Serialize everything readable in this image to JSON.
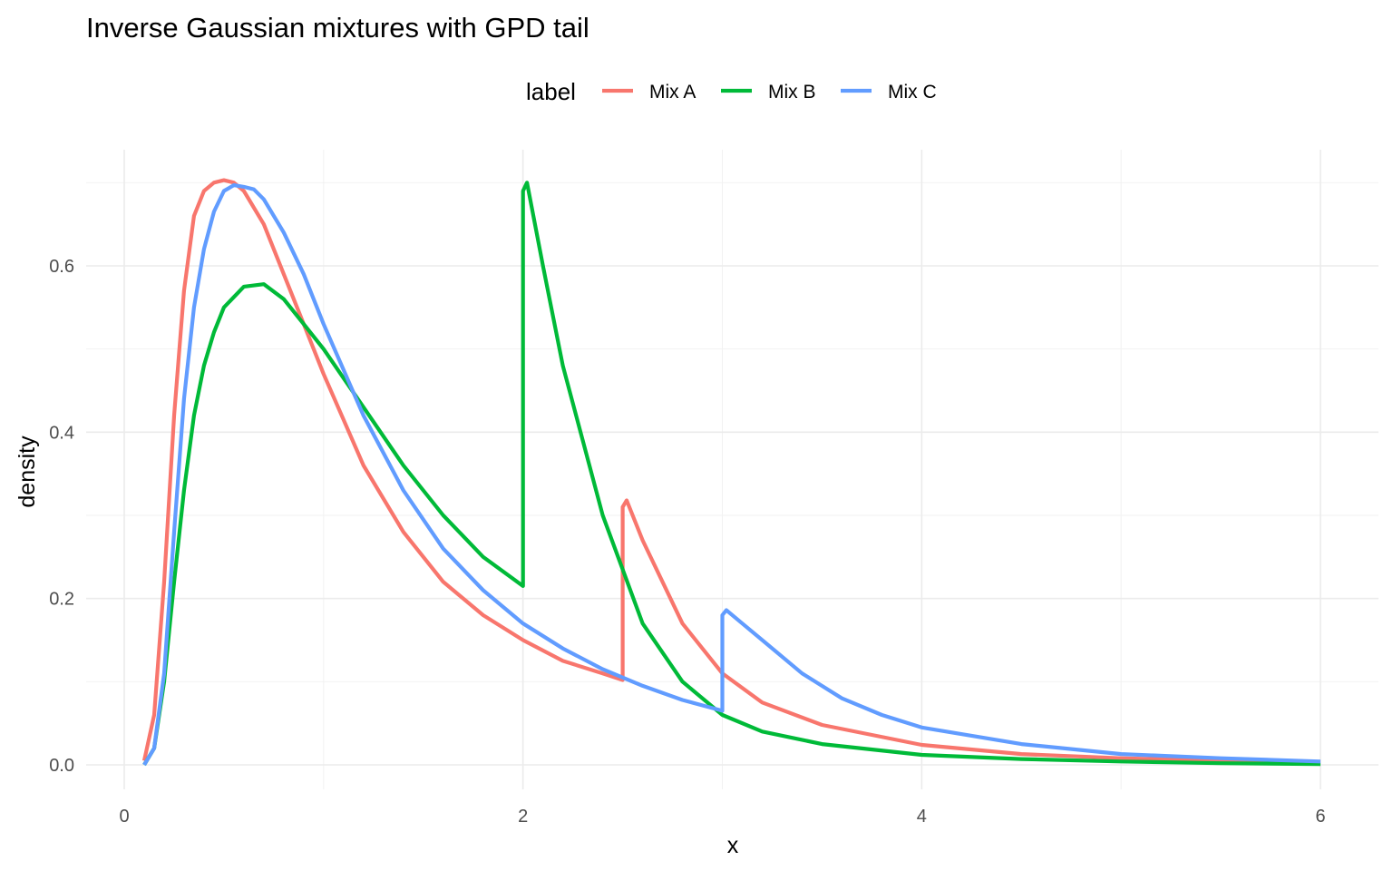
{
  "chart_data": {
    "type": "line",
    "title": "Inverse Gaussian mixtures with GPD tail",
    "xlabel": "x",
    "ylabel": "density",
    "xlim": [
      0,
      6.25
    ],
    "ylim": [
      -0.035,
      0.745
    ],
    "x_ticks": [
      0,
      2,
      4,
      6
    ],
    "x_tick_labels": [
      "0",
      "2",
      "4",
      "6"
    ],
    "y_ticks": [
      0.0,
      0.2,
      0.4,
      0.6
    ],
    "y_tick_labels": [
      "0.0",
      "0.2",
      "0.4",
      "0.6"
    ],
    "grid": true,
    "legend": {
      "title": "label",
      "position": "top"
    },
    "series": [
      {
        "name": "Mix A",
        "color": "#F8766D",
        "x": [
          0.1,
          0.15,
          0.2,
          0.25,
          0.3,
          0.35,
          0.4,
          0.45,
          0.5,
          0.55,
          0.6,
          0.7,
          0.8,
          0.9,
          1.0,
          1.2,
          1.4,
          1.6,
          1.8,
          2.0,
          2.2,
          2.4,
          2.5,
          2.5,
          2.52,
          2.6,
          2.8,
          3.0,
          3.2,
          3.5,
          4.0,
          4.5,
          5.0,
          5.5,
          6.0
        ],
        "y": [
          0.005,
          0.06,
          0.22,
          0.42,
          0.57,
          0.66,
          0.69,
          0.7,
          0.703,
          0.7,
          0.69,
          0.65,
          0.59,
          0.53,
          0.47,
          0.36,
          0.28,
          0.22,
          0.18,
          0.15,
          0.125,
          0.11,
          0.102,
          0.31,
          0.318,
          0.27,
          0.17,
          0.11,
          0.075,
          0.048,
          0.024,
          0.013,
          0.008,
          0.005,
          0.003
        ]
      },
      {
        "name": "Mix B",
        "color": "#00BA38",
        "x": [
          0.1,
          0.15,
          0.2,
          0.25,
          0.3,
          0.35,
          0.4,
          0.45,
          0.5,
          0.6,
          0.7,
          0.8,
          0.9,
          1.0,
          1.2,
          1.4,
          1.6,
          1.8,
          2.0,
          2.0,
          2.02,
          2.1,
          2.2,
          2.4,
          2.6,
          2.8,
          3.0,
          3.2,
          3.5,
          4.0,
          4.5,
          5.0,
          5.5,
          6.0
        ],
        "y": [
          0.0,
          0.02,
          0.1,
          0.22,
          0.33,
          0.42,
          0.48,
          0.52,
          0.55,
          0.575,
          0.578,
          0.56,
          0.53,
          0.5,
          0.43,
          0.36,
          0.3,
          0.25,
          0.215,
          0.69,
          0.7,
          0.6,
          0.48,
          0.3,
          0.17,
          0.1,
          0.06,
          0.04,
          0.025,
          0.012,
          0.007,
          0.004,
          0.002,
          0.001
        ]
      },
      {
        "name": "Mix C",
        "color": "#619CFF",
        "x": [
          0.1,
          0.15,
          0.2,
          0.25,
          0.3,
          0.35,
          0.4,
          0.45,
          0.5,
          0.55,
          0.6,
          0.65,
          0.7,
          0.8,
          0.9,
          1.0,
          1.2,
          1.4,
          1.6,
          1.8,
          2.0,
          2.2,
          2.4,
          2.6,
          2.8,
          3.0,
          3.0,
          3.02,
          3.1,
          3.2,
          3.4,
          3.6,
          3.8,
          4.0,
          4.5,
          5.0,
          5.5,
          6.0
        ],
        "y": [
          0.0,
          0.02,
          0.11,
          0.28,
          0.44,
          0.55,
          0.62,
          0.665,
          0.69,
          0.697,
          0.695,
          0.692,
          0.68,
          0.64,
          0.59,
          0.53,
          0.42,
          0.33,
          0.26,
          0.21,
          0.17,
          0.14,
          0.115,
          0.095,
          0.078,
          0.065,
          0.18,
          0.186,
          0.17,
          0.15,
          0.11,
          0.08,
          0.06,
          0.045,
          0.025,
          0.013,
          0.008,
          0.004
        ]
      }
    ]
  }
}
